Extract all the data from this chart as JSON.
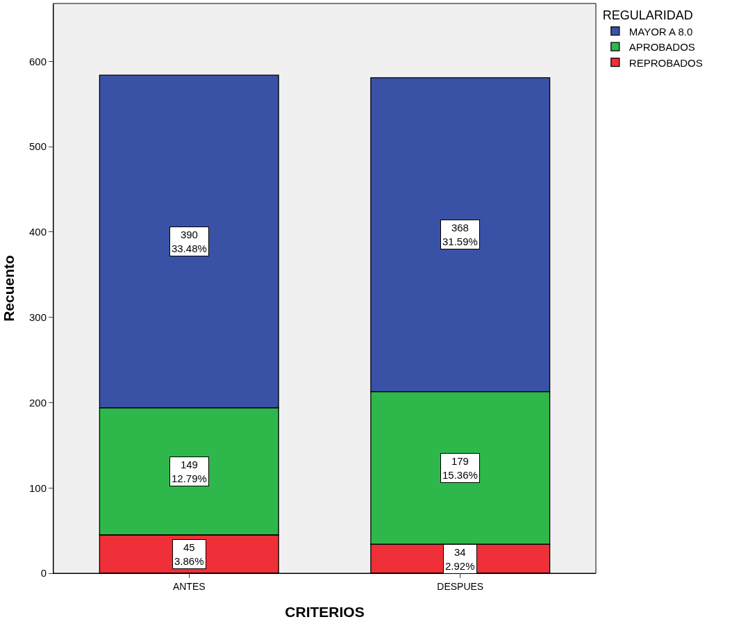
{
  "chart_data": {
    "type": "bar",
    "stacked": true,
    "xlabel": "CRITERIOS",
    "ylabel": "Recuento",
    "legend_title": "REGULARIDAD",
    "legend": "top right",
    "grid": false,
    "categories": [
      "ANTES",
      "DESPUES"
    ],
    "ylim": [
      0,
      668
    ],
    "yticks": [
      0,
      100,
      200,
      300,
      400,
      500,
      600
    ],
    "series": [
      {
        "name": "REPROBADOS",
        "color": "#ef3038",
        "values": [
          45,
          34
        ],
        "value_labels": [
          "45\n3.86%",
          "34\n2.92%"
        ]
      },
      {
        "name": "APROBADOS",
        "color": "#2eb84b",
        "values": [
          149,
          179
        ],
        "value_labels": [
          "149\n12.79%",
          "179\n15.36%"
        ]
      },
      {
        "name": "MAYOR A 8.0",
        "color": "#3a52a6",
        "values": [
          390,
          368
        ],
        "value_labels": [
          "390\n33.48%",
          "368\n31.59%"
        ]
      }
    ]
  }
}
